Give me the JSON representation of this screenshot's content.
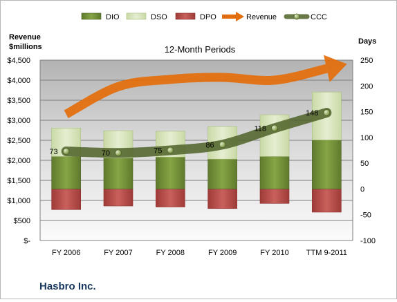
{
  "chart_data": {
    "type": "bar",
    "title": "12-Month Periods",
    "company": "Hasbro Inc.",
    "y_left_label": [
      "Revenue",
      "$millions"
    ],
    "y_right_label": "Days",
    "categories": [
      "FY 2006",
      "FY 2007",
      "FY 2008",
      "FY 2009",
      "FY 2010",
      "TTM 9-2011"
    ],
    "y_left_ticks": [
      "$4,500",
      "$4,000",
      "$3,500",
      "$3,000",
      "$2,500",
      "$2,000",
      "$1,500",
      "$1,000",
      "$500",
      "$-"
    ],
    "y_right_ticks": [
      "250",
      "200",
      "150",
      "100",
      "50",
      "0",
      "-50",
      "-100"
    ],
    "ylim_days": [
      -100,
      250
    ],
    "grid": true,
    "legend_position": "top",
    "series": [
      {
        "name": "DIO",
        "kind": "stacked-bar",
        "color": "#77933c",
        "values": [
          63,
          60,
          62,
          58,
          63,
          95
        ]
      },
      {
        "name": "DSO",
        "kind": "stacked-bar",
        "color": "#d7e4bd",
        "values": [
          55,
          53,
          50,
          63,
          81,
          93
        ]
      },
      {
        "name": "DPO",
        "kind": "stacked-bar-negative",
        "color": "#c0504d",
        "values": [
          -40,
          -33,
          -35,
          -38,
          -28,
          -45
        ]
      },
      {
        "name": "Revenue",
        "kind": "arrow",
        "color": "#e46c0a",
        "values": [
          3150,
          3840,
          4020,
          4070,
          4000,
          4290
        ],
        "units": "$millions"
      },
      {
        "name": "CCC",
        "kind": "line",
        "color": "#4f6228",
        "values": [
          73,
          70,
          75,
          86,
          118,
          148
        ],
        "labels": [
          "73",
          "70",
          "75",
          "86",
          "118",
          "148"
        ]
      }
    ]
  }
}
